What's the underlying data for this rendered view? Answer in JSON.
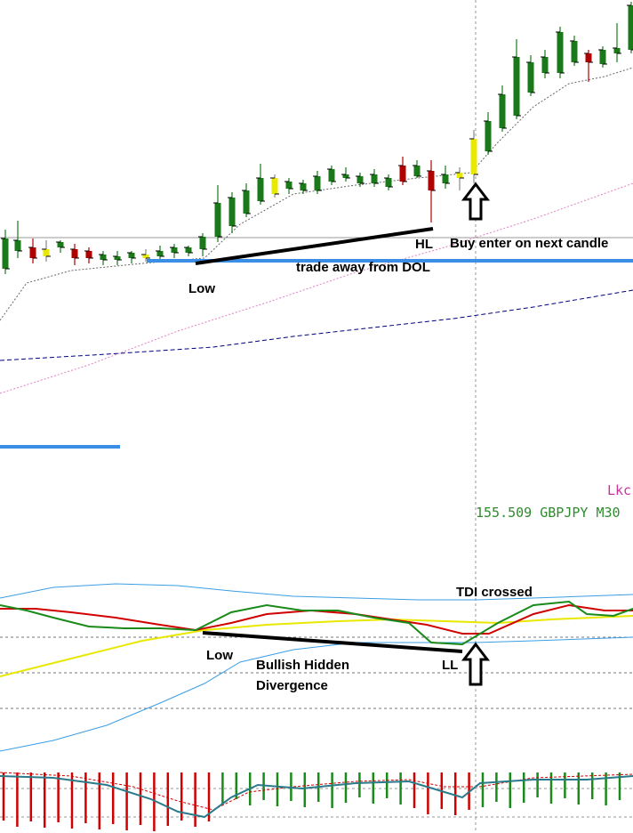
{
  "chart_data": [
    {
      "type": "candlestick",
      "panel": "price",
      "symbol_label": "155.509 GBPJPY M30",
      "price_label_color": "#2e8b2e",
      "indicator_label_partial": "Lkc",
      "indicator_label_color": "#cc3399",
      "colors": {
        "bull": "#1a7a1a",
        "bear": "#b00000",
        "doji": "#e8e800",
        "dol_line": "#3a8ee6",
        "ma_slow": "#000080",
        "ma_pink": "#e080c0",
        "ma_fast": "#666666"
      },
      "annotations": {
        "low": "Low",
        "hl": "HL",
        "buy": "Buy enter on next candle",
        "dol": "trade away from DOL"
      }
    },
    {
      "type": "line",
      "panel": "TDI",
      "series": [
        {
          "color": "#d00000"
        },
        {
          "color": "#1a8a1a"
        },
        {
          "color": "#e8e800"
        },
        {
          "color": "#3a9ee6"
        }
      ],
      "annotations": {
        "tdi": "TDI crossed",
        "low": "Low",
        "div1": "Bullish Hidden",
        "div2": "Divergence",
        "ll": "LL"
      }
    },
    {
      "type": "bar",
      "panel": "histogram",
      "colors": {
        "up": "#1a8a1a",
        "down": "#d00000",
        "line": "#2a7a8a"
      }
    }
  ]
}
